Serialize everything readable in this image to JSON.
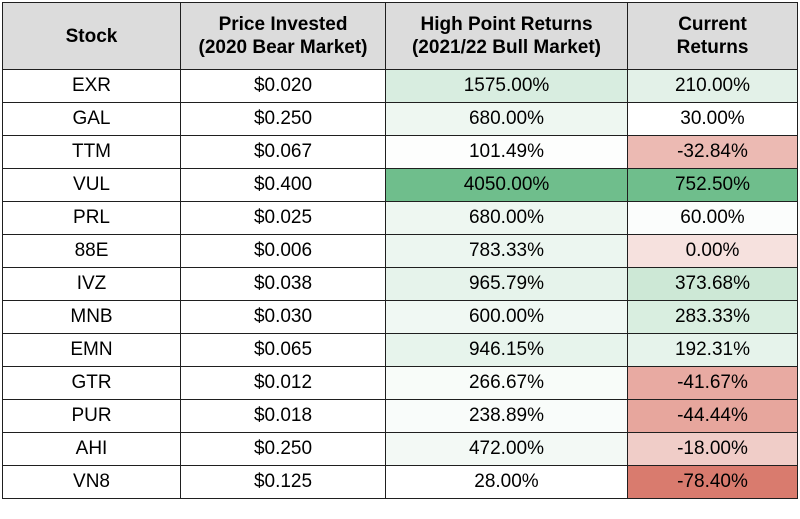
{
  "headers": {
    "stock": "Stock",
    "price_line1": "Price Invested",
    "price_line2": "(2020 Bear Market)",
    "high_line1": "High Point Returns",
    "high_line2": "(2021/22 Bull Market)",
    "current_line1": "Current",
    "current_line2": "Returns"
  },
  "rows": [
    {
      "stock": "EXR",
      "price": "$0.020",
      "high": "1575.00%",
      "current": "210.00%",
      "high_color": "#d8ede0",
      "current_color": "#e3f1e8"
    },
    {
      "stock": "GAL",
      "price": "$0.250",
      "high": "680.00%",
      "current": "30.00%",
      "high_color": "#eef7f1",
      "current_color": "#ffffff"
    },
    {
      "stock": "TTM",
      "price": "$0.067",
      "high": "101.49%",
      "current": "-32.84%",
      "high_color": "#fdfefd",
      "current_color": "#ecbab3"
    },
    {
      "stock": "VUL",
      "price": "$0.400",
      "high": "4050.00%",
      "current": "752.50%",
      "high_color": "#6fbe8c",
      "current_color": "#6fbe8c"
    },
    {
      "stock": "PRL",
      "price": "$0.025",
      "high": "680.00%",
      "current": "60.00%",
      "high_color": "#eef7f1",
      "current_color": "#fbfdfc"
    },
    {
      "stock": "88E",
      "price": "$0.006",
      "high": "783.33%",
      "current": "0.00%",
      "high_color": "#ecf6f0",
      "current_color": "#f6e1de"
    },
    {
      "stock": "IVZ",
      "price": "$0.038",
      "high": "965.79%",
      "current": "373.68%",
      "high_color": "#e6f3eb",
      "current_color": "#cde8d6"
    },
    {
      "stock": "MNB",
      "price": "$0.030",
      "high": "600.00%",
      "current": "283.33%",
      "high_color": "#f0f8f3",
      "current_color": "#d9eee0"
    },
    {
      "stock": "EMN",
      "price": "$0.065",
      "high": "946.15%",
      "current": "192.31%",
      "high_color": "#e7f4ec",
      "current_color": "#e6f3eb"
    },
    {
      "stock": "GTR",
      "price": "$0.012",
      "high": "266.67%",
      "current": "-41.67%",
      "high_color": "#f8fcf9",
      "current_color": "#e8aaa2"
    },
    {
      "stock": "PUR",
      "price": "$0.018",
      "high": "238.89%",
      "current": "-44.44%",
      "high_color": "#f9fcfa",
      "current_color": "#e7a69d"
    },
    {
      "stock": "AHI",
      "price": "$0.250",
      "high": "472.00%",
      "current": "-18.00%",
      "high_color": "#f3f9f5",
      "current_color": "#f0cdc8"
    },
    {
      "stock": "VN8",
      "price": "$0.125",
      "high": "28.00%",
      "current": "-78.40%",
      "high_color": "#ffffff",
      "current_color": "#d97b6e"
    }
  ]
}
